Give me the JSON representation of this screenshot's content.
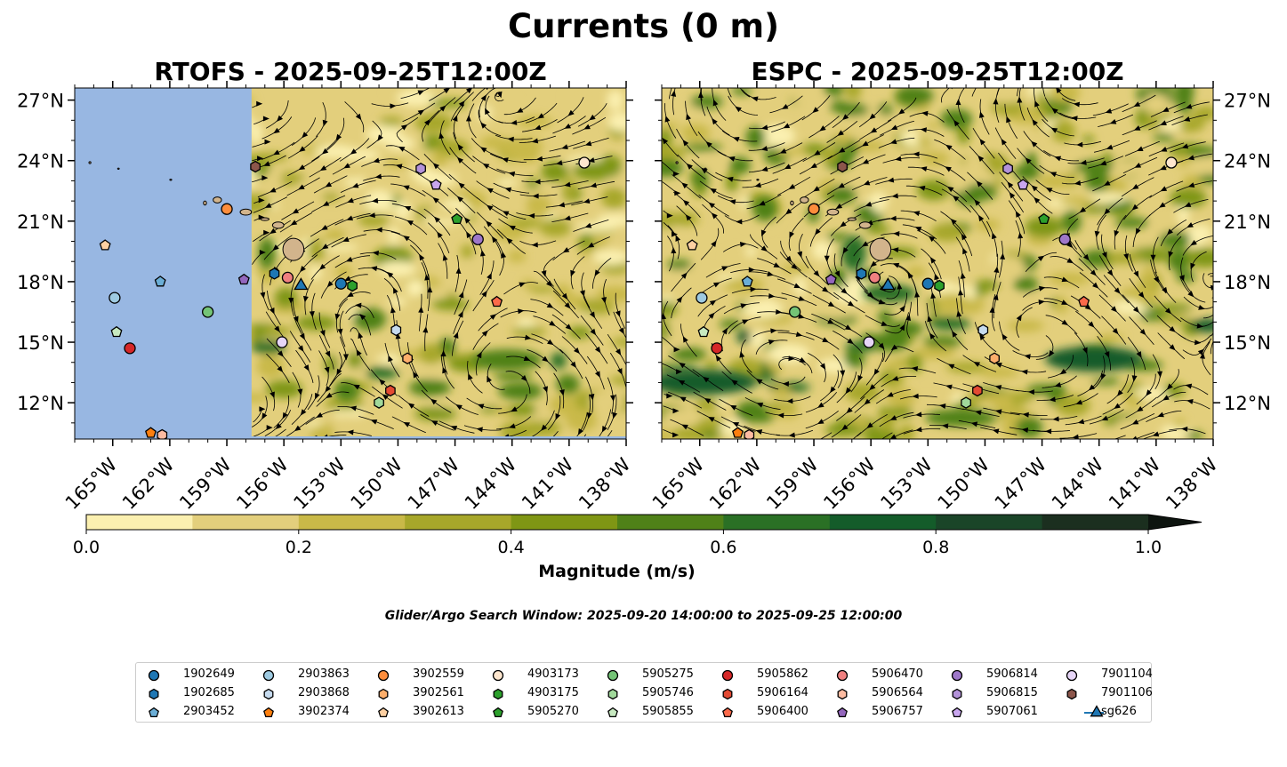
{
  "figure": {
    "title": "Currents (0 m)",
    "search_window": "Glider/Argo Search Window: 2025-09-20 14:00:00 to 2025-09-25 12:00:00"
  },
  "chart_data": [
    {
      "type": "heatmap",
      "title": "RTOFS - 2025-09-25T12:00Z",
      "field": "surface current magnitude with streamlines",
      "x_ticks": [
        "165°W",
        "162°W",
        "159°W",
        "156°W",
        "153°W",
        "150°W",
        "147°W",
        "144°W",
        "141°W",
        "138°W"
      ],
      "y_ticks": [
        "27°N",
        "24°N",
        "21°N",
        "18°N",
        "15°N",
        "12°N"
      ],
      "xlim": [
        -167,
        -138
      ],
      "ylim": [
        10.2,
        27.6
      ],
      "no_data_region": "west of 157.7°W",
      "land_fill": "#d2b48c",
      "ocean_fill": "#98b7e2"
    },
    {
      "type": "heatmap",
      "title": "ESPC - 2025-09-25T12:00Z",
      "field": "surface current magnitude with streamlines",
      "x_ticks": [
        "165°W",
        "162°W",
        "159°W",
        "156°W",
        "153°W",
        "150°W",
        "147°W",
        "144°W",
        "141°W",
        "138°W"
      ],
      "y_ticks": [
        "27°N",
        "24°N",
        "21°N",
        "18°N",
        "15°N",
        "12°N"
      ],
      "xlim": [
        -167,
        -138
      ],
      "ylim": [
        10.2,
        27.6
      ],
      "land_fill": "#d2b48c"
    }
  ],
  "colorbar": {
    "label": "Magnitude (m/s)",
    "ticks": [
      "0.0",
      "0.2",
      "0.4",
      "0.6",
      "0.8",
      "1.0"
    ],
    "min": 0,
    "max": 1.0,
    "extend": "max",
    "levels": [
      {
        "from": 0.0,
        "to": 0.1,
        "color": "#fbf0b0"
      },
      {
        "from": 0.1,
        "to": 0.2,
        "color": "#e3cf7c"
      },
      {
        "from": 0.2,
        "to": 0.3,
        "color": "#c9b948"
      },
      {
        "from": 0.3,
        "to": 0.4,
        "color": "#a7a72a"
      },
      {
        "from": 0.4,
        "to": 0.5,
        "color": "#7f9614"
      },
      {
        "from": 0.5,
        "to": 0.6,
        "color": "#4f8118"
      },
      {
        "from": 0.6,
        "to": 0.7,
        "color": "#2a7025"
      },
      {
        "from": 0.7,
        "to": 0.8,
        "color": "#145c2a"
      },
      {
        "from": 0.8,
        "to": 0.9,
        "color": "#1a4528"
      },
      {
        "from": 0.9,
        "to": 1.0,
        "color": "#1b2f1f"
      }
    ],
    "extend_color": "#0d140f"
  },
  "floats": [
    {
      "id": "1902649",
      "marker": "circle",
      "color": "#1f77b4",
      "lon": -153.0,
      "lat": 17.9
    },
    {
      "id": "1902685",
      "marker": "hexagon",
      "color": "#1f77b4",
      "lon": -156.5,
      "lat": 18.4
    },
    {
      "id": "2903452",
      "marker": "pentagon",
      "color": "#6baed6",
      "lon": -162.5,
      "lat": 18.0
    },
    {
      "id": "2903863",
      "marker": "circle",
      "color": "#9ecae1",
      "lon": -164.9,
      "lat": 17.2
    },
    {
      "id": "2903868",
      "marker": "hexagon",
      "color": "#c6dbef",
      "lon": -150.1,
      "lat": 15.6
    },
    {
      "id": "3902374",
      "marker": "pentagon",
      "color": "#fd7f0e",
      "lon": -163.0,
      "lat": 10.5
    },
    {
      "id": "3902559",
      "marker": "circle",
      "color": "#fd8d3c",
      "lon": -159.0,
      "lat": 21.6
    },
    {
      "id": "3902561",
      "marker": "hexagon",
      "color": "#fdae6b",
      "lon": -149.5,
      "lat": 14.2
    },
    {
      "id": "3902613",
      "marker": "pentagon",
      "color": "#fdd0a2",
      "lon": -165.4,
      "lat": 19.8
    },
    {
      "id": "4903173",
      "marker": "circle",
      "color": "#fee6ce",
      "lon": -140.2,
      "lat": 23.9
    },
    {
      "id": "4903175",
      "marker": "hexagon",
      "color": "#2ca02c",
      "lon": -152.4,
      "lat": 17.8
    },
    {
      "id": "5905270",
      "marker": "pentagon",
      "color": "#2ca02c",
      "lon": -146.9,
      "lat": 21.1
    },
    {
      "id": "5905275",
      "marker": "circle",
      "color": "#74c476",
      "lon": -160.0,
      "lat": 16.5
    },
    {
      "id": "5905746",
      "marker": "hexagon",
      "color": "#a1d99b",
      "lon": -151.0,
      "lat": 12.0
    },
    {
      "id": "5905855",
      "marker": "pentagon",
      "color": "#c7e9c0",
      "lon": -164.8,
      "lat": 15.5
    },
    {
      "id": "5905862",
      "marker": "circle",
      "color": "#d62728",
      "lon": -164.1,
      "lat": 14.7
    },
    {
      "id": "5906164",
      "marker": "hexagon",
      "color": "#e34a33",
      "lon": -150.4,
      "lat": 12.6
    },
    {
      "id": "5906400",
      "marker": "pentagon",
      "color": "#fb6a4a",
      "lon": -144.8,
      "lat": 17.0
    },
    {
      "id": "5906470",
      "marker": "circle",
      "color": "#f08080",
      "lon": -155.8,
      "lat": 18.2
    },
    {
      "id": "5906564",
      "marker": "hexagon",
      "color": "#fcbba1",
      "lon": -162.4,
      "lat": 10.4
    },
    {
      "id": "5906757",
      "marker": "pentagon",
      "color": "#9467bd",
      "lon": -158.1,
      "lat": 18.1
    },
    {
      "id": "5906814",
      "marker": "circle",
      "color": "#9e77c9",
      "lon": -145.8,
      "lat": 20.1
    },
    {
      "id": "5906815",
      "marker": "hexagon",
      "color": "#b392d9",
      "lon": -148.8,
      "lat": 23.6
    },
    {
      "id": "5907061",
      "marker": "pentagon",
      "color": "#c9a6ef",
      "lon": -148.0,
      "lat": 22.8
    },
    {
      "id": "7901104",
      "marker": "circle",
      "color": "#e6d5f7",
      "lon": -156.1,
      "lat": 15.0
    },
    {
      "id": "7901106",
      "marker": "hexagon",
      "color": "#8c564b",
      "lon": -157.5,
      "lat": 23.7
    },
    {
      "id": "sg626",
      "marker": "triangle",
      "color": "#1f77b4",
      "lon": -155.1,
      "lat": 17.8
    }
  ],
  "legend": {
    "columns": [
      [
        "1902649",
        "1902685",
        "2903452"
      ],
      [
        "2903863",
        "2903868",
        "3902374"
      ],
      [
        "3902559",
        "3902561",
        "3902613"
      ],
      [
        "4903173",
        "4903175",
        "5905270"
      ],
      [
        "5905275",
        "5905746",
        "5905855"
      ],
      [
        "5905862",
        "5906164",
        "5906400"
      ],
      [
        "5906470",
        "5906564",
        "5906757"
      ],
      [
        "5906814",
        "5906815",
        "5907061"
      ],
      [
        "7901104",
        "7901106",
        "sg626"
      ]
    ]
  }
}
